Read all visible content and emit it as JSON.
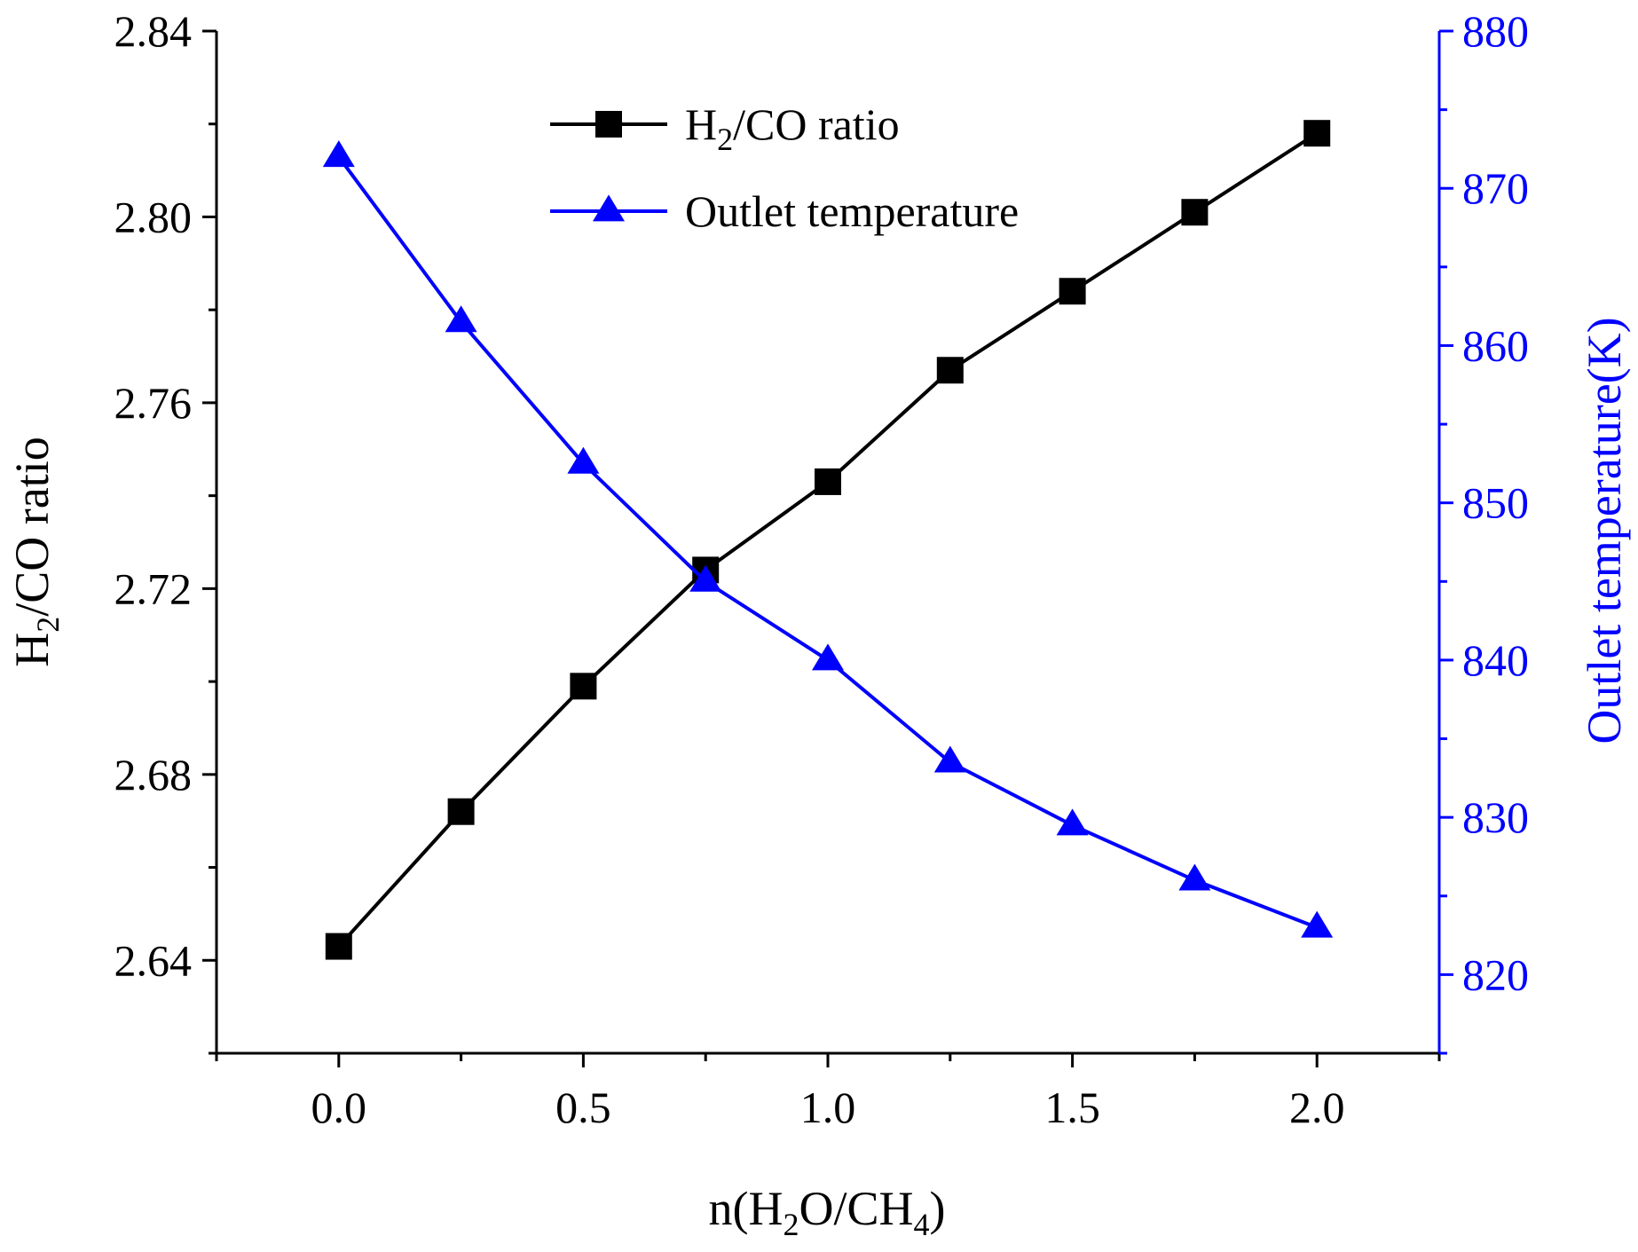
{
  "chart_data": {
    "type": "line",
    "xlabel": {
      "prefix": "n(H",
      "sub1": "2",
      "mid": "O/CH",
      "sub2": "4",
      "suffix": ")"
    },
    "ylabel_left": {
      "prefix": "H",
      "sub": "2",
      "suffix": "/CO ratio"
    },
    "ylabel_right": "Outlet temperature(K)",
    "xlim": [
      -0.25,
      2.25
    ],
    "ylim_left": [
      2.62,
      2.84
    ],
    "ylim_right": [
      815,
      880
    ],
    "xticks": [
      0.0,
      0.5,
      1.0,
      1.5,
      2.0
    ],
    "xtick_labels": [
      "0.0",
      "0.5",
      "1.0",
      "1.5",
      "2.0"
    ],
    "yticks_left": [
      2.64,
      2.68,
      2.72,
      2.76,
      2.8,
      2.84
    ],
    "ytick_labels_left": [
      "2.64",
      "2.68",
      "2.72",
      "2.76",
      "2.80",
      "2.84"
    ],
    "yticks_right": [
      820,
      830,
      840,
      850,
      860,
      870,
      880
    ],
    "ytick_labels_right": [
      "820",
      "830",
      "840",
      "850",
      "860",
      "870",
      "880"
    ],
    "x": [
      0.0,
      0.25,
      0.5,
      0.75,
      1.0,
      1.25,
      1.5,
      1.75,
      2.0
    ],
    "series": [
      {
        "name": "H2/CO ratio",
        "legend": {
          "prefix": "H",
          "sub": "2",
          "suffix": "/CO ratio"
        },
        "axis": "left",
        "marker": "square",
        "color": "#000000",
        "values": [
          2.643,
          2.672,
          2.699,
          2.724,
          2.743,
          2.767,
          2.784,
          2.801,
          2.818
        ]
      },
      {
        "name": "Outlet temperature",
        "legend": {
          "prefix": "Outlet temperature",
          "sub": "",
          "suffix": ""
        },
        "axis": "right",
        "marker": "triangle",
        "color": "#0000ff",
        "values": [
          872.0,
          861.5,
          852.5,
          845.0,
          840.0,
          833.5,
          829.5,
          826.0,
          823.0
        ]
      }
    ],
    "legend_position": "top-center",
    "grid": false
  }
}
